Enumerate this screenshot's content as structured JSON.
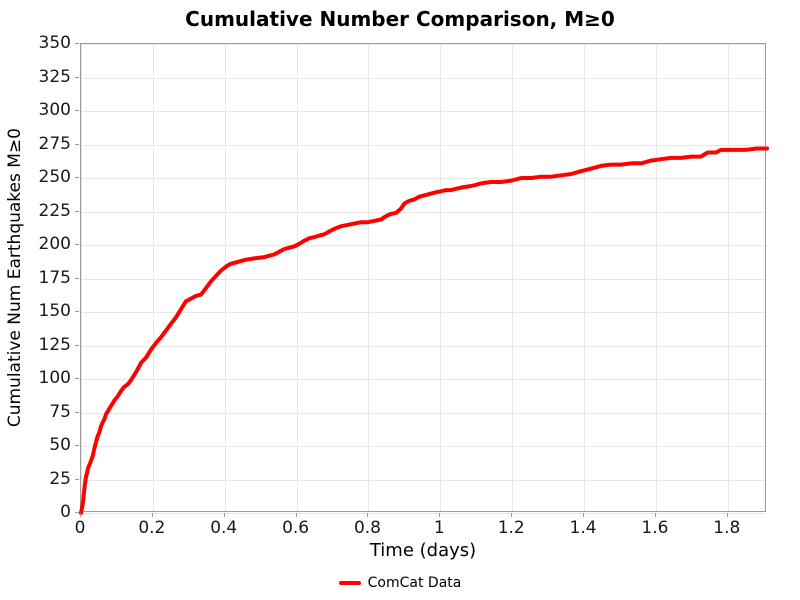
{
  "chart_data": {
    "type": "line",
    "title": "Cumulative Number Comparison, M≥0",
    "xlabel": "Time (days)",
    "ylabel": "Cumulative Num Earthquakes M≥0",
    "xlim": [
      0,
      1.909
    ],
    "ylim": [
      0,
      350
    ],
    "grid": true,
    "legend_position": "bottom",
    "x_ticks": [
      0,
      0.2,
      0.4,
      0.6,
      0.8,
      1,
      1.2,
      1.4,
      1.6,
      1.8
    ],
    "x_tick_labels": [
      "0",
      "0.2",
      "0.4",
      "0.6",
      "0.8",
      "1",
      "1.2",
      "1.4",
      "1.6",
      "1.8"
    ],
    "y_ticks": [
      0,
      25,
      50,
      75,
      100,
      125,
      150,
      175,
      200,
      225,
      250,
      275,
      300,
      325,
      350
    ],
    "series": [
      {
        "name": "ComCat Data",
        "color": "#ff0000",
        "points": [
          [
            0,
            0
          ],
          [
            0.003,
            4
          ],
          [
            0.006,
            9
          ],
          [
            0.008,
            15
          ],
          [
            0.011,
            22
          ],
          [
            0.014,
            27
          ],
          [
            0.017,
            30
          ],
          [
            0.019,
            33
          ],
          [
            0.022,
            35
          ],
          [
            0.028,
            39
          ],
          [
            0.033,
            43
          ],
          [
            0.037,
            48
          ],
          [
            0.042,
            53
          ],
          [
            0.046,
            57
          ],
          [
            0.051,
            60
          ],
          [
            0.056,
            65
          ],
          [
            0.061,
            68
          ],
          [
            0.065,
            70
          ],
          [
            0.07,
            74
          ],
          [
            0.075,
            76
          ],
          [
            0.079,
            78
          ],
          [
            0.084,
            80
          ],
          [
            0.093,
            84
          ],
          [
            0.102,
            87
          ],
          [
            0.111,
            91
          ],
          [
            0.12,
            94
          ],
          [
            0.13,
            96
          ],
          [
            0.139,
            99
          ],
          [
            0.148,
            103
          ],
          [
            0.155,
            106
          ],
          [
            0.167,
            112
          ],
          [
            0.181,
            116
          ],
          [
            0.195,
            122
          ],
          [
            0.209,
            127
          ],
          [
            0.222,
            131
          ],
          [
            0.236,
            136
          ],
          [
            0.25,
            141
          ],
          [
            0.264,
            146
          ],
          [
            0.278,
            152
          ],
          [
            0.292,
            158
          ],
          [
            0.306,
            160
          ],
          [
            0.32,
            162
          ],
          [
            0.334,
            163
          ],
          [
            0.348,
            168
          ],
          [
            0.362,
            173
          ],
          [
            0.376,
            177
          ],
          [
            0.39,
            181
          ],
          [
            0.404,
            184
          ],
          [
            0.417,
            186
          ],
          [
            0.431,
            187
          ],
          [
            0.445,
            188
          ],
          [
            0.459,
            189
          ],
          [
            0.482,
            190
          ],
          [
            0.51,
            191
          ],
          [
            0.524,
            192
          ],
          [
            0.538,
            193
          ],
          [
            0.552,
            195
          ],
          [
            0.566,
            197
          ],
          [
            0.58,
            198
          ],
          [
            0.594,
            199
          ],
          [
            0.608,
            201
          ],
          [
            0.62,
            203
          ],
          [
            0.635,
            205
          ],
          [
            0.65,
            206
          ],
          [
            0.663,
            207
          ],
          [
            0.677,
            208
          ],
          [
            0.69,
            210
          ],
          [
            0.705,
            212
          ],
          [
            0.724,
            214
          ],
          [
            0.742,
            215
          ],
          [
            0.76,
            216
          ],
          [
            0.78,
            217
          ],
          [
            0.798,
            217
          ],
          [
            0.816,
            218
          ],
          [
            0.835,
            219
          ],
          [
            0.845,
            221
          ],
          [
            0.86,
            223
          ],
          [
            0.877,
            224
          ],
          [
            0.89,
            227
          ],
          [
            0.9,
            231
          ],
          [
            0.914,
            233
          ],
          [
            0.928,
            234
          ],
          [
            0.941,
            236
          ],
          [
            0.955,
            237
          ],
          [
            0.969,
            238
          ],
          [
            0.983,
            239
          ],
          [
            1.0,
            240
          ],
          [
            1.016,
            241
          ],
          [
            1.03,
            241
          ],
          [
            1.045,
            242
          ],
          [
            1.06,
            243
          ],
          [
            1.086,
            244
          ],
          [
            1.114,
            246
          ],
          [
            1.14,
            247
          ],
          [
            1.169,
            247
          ],
          [
            1.197,
            248
          ],
          [
            1.225,
            250
          ],
          [
            1.253,
            250
          ],
          [
            1.28,
            251
          ],
          [
            1.308,
            251
          ],
          [
            1.336,
            252
          ],
          [
            1.364,
            253
          ],
          [
            1.39,
            255
          ],
          [
            1.42,
            257
          ],
          [
            1.447,
            259
          ],
          [
            1.475,
            260
          ],
          [
            1.503,
            260
          ],
          [
            1.531,
            261
          ],
          [
            1.56,
            261
          ],
          [
            1.586,
            263
          ],
          [
            1.614,
            264
          ],
          [
            1.642,
            265
          ],
          [
            1.67,
            265
          ],
          [
            1.698,
            266
          ],
          [
            1.725,
            266
          ],
          [
            1.744,
            269
          ],
          [
            1.767,
            269
          ],
          [
            1.781,
            271
          ],
          [
            1.809,
            271
          ],
          [
            1.85,
            271
          ],
          [
            1.88,
            272
          ],
          [
            1.909,
            272
          ]
        ]
      }
    ]
  }
}
